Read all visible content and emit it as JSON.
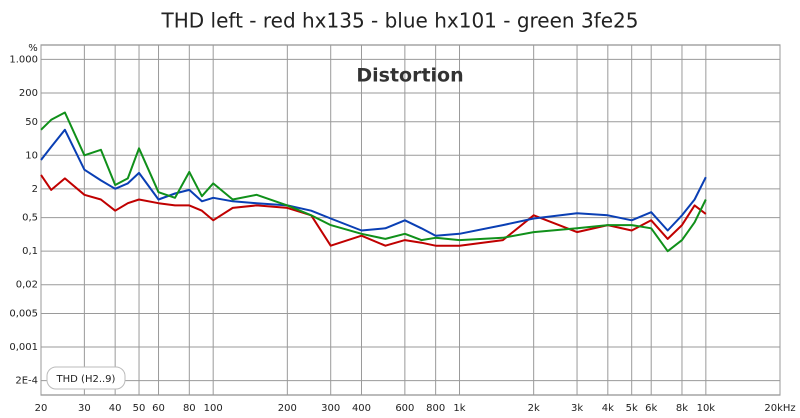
{
  "chart_data": {
    "type": "line",
    "title": "THD left - red hx135 - blue hx101 - green 3fe25",
    "subtitle": "Distortion",
    "y_unit": "%",
    "annotation": "THD (H2..9)",
    "log_x": true,
    "log_y": true,
    "grid": true,
    "xlim": [
      20,
      20000
    ],
    "ylim": [
      0.0001,
      2000
    ],
    "xticks": [
      20,
      30,
      40,
      50,
      60,
      80,
      100,
      200,
      300,
      400,
      600,
      800,
      {
        "value": 1000,
        "label": "1k"
      },
      {
        "value": 2000,
        "label": "2k"
      },
      {
        "value": 3000,
        "label": "3k"
      },
      {
        "value": 4000,
        "label": "4k"
      },
      {
        "value": 5000,
        "label": "5k"
      },
      {
        "value": 6000,
        "label": "6k"
      },
      {
        "value": 8000,
        "label": "8k"
      },
      {
        "value": 10000,
        "label": "10k"
      },
      {
        "value": 20000,
        "label": "20kHz"
      }
    ],
    "yticks": [
      {
        "value": 1000,
        "label": "1.000"
      },
      200,
      50,
      10,
      2,
      {
        "value": 0.5,
        "label": "0,5"
      },
      {
        "value": 0.1,
        "label": "0,1"
      },
      {
        "value": 0.02,
        "label": "0,02"
      },
      {
        "value": 0.005,
        "label": "0,005"
      },
      {
        "value": 0.001,
        "label": "0,001"
      },
      {
        "value": 0.0002,
        "label": "2E-4"
      }
    ],
    "x": [
      20,
      22,
      25,
      30,
      35,
      40,
      45,
      50,
      60,
      70,
      80,
      90,
      100,
      120,
      150,
      200,
      250,
      300,
      400,
      500,
      600,
      700,
      800,
      1000,
      1500,
      2000,
      3000,
      4000,
      5000,
      6000,
      7000,
      8000,
      9000,
      10000
    ],
    "series": [
      {
        "name": "hx135",
        "color": "#c00000",
        "values": [
          3.9,
          1.9,
          3.3,
          1.5,
          1.2,
          0.7,
          1,
          1.2,
          1,
          0.9,
          0.9,
          0.7,
          0.44,
          0.8,
          0.9,
          0.8,
          0.56,
          0.13,
          0.21,
          0.13,
          0.17,
          0.15,
          0.13,
          0.13,
          0.17,
          0.56,
          0.25,
          0.35,
          0.27,
          0.44,
          0.18,
          0.35,
          0.9,
          0.6
        ]
      },
      {
        "name": "hx101",
        "color": "#0a3fb4",
        "values": [
          8,
          15,
          34,
          5,
          3,
          2,
          2.6,
          4.3,
          1.2,
          1.6,
          1.9,
          1.1,
          1.3,
          1.1,
          1,
          0.9,
          0.7,
          0.48,
          0.27,
          0.3,
          0.44,
          0.3,
          0.21,
          0.23,
          0.35,
          0.48,
          0.62,
          0.56,
          0.44,
          0.65,
          0.27,
          0.56,
          1.2,
          3.5
        ]
      },
      {
        "name": "3fe25",
        "color": "#10901a",
        "values": [
          34,
          55,
          78,
          10,
          13,
          2.4,
          3.3,
          14,
          1.7,
          1.3,
          4.5,
          1.4,
          2.6,
          1.2,
          1.5,
          0.9,
          0.56,
          0.35,
          0.23,
          0.18,
          0.23,
          0.17,
          0.19,
          0.17,
          0.19,
          0.25,
          0.3,
          0.35,
          0.35,
          0.3,
          0.1,
          0.17,
          0.4,
          1.2
        ]
      }
    ]
  }
}
